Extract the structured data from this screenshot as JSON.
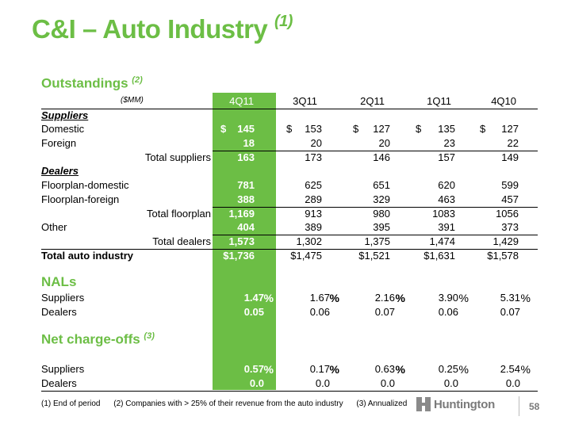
{
  "title": "C&I – Auto Industry",
  "title_note": "(1)",
  "outstandings": {
    "heading": "Outstandings",
    "heading_note": "(2)",
    "units": "($MM)",
    "columns": [
      "4Q11",
      "3Q11",
      "2Q11",
      "1Q11",
      "4Q10"
    ],
    "suppliers_label": "Suppliers",
    "domestic": {
      "label": "Domestic",
      "values": [
        "145",
        "153",
        "127",
        "135",
        "127"
      ],
      "currency": "$"
    },
    "foreign": {
      "label": "Foreign",
      "values": [
        "18",
        "20",
        "20",
        "23",
        "22"
      ]
    },
    "total_suppliers": {
      "label": "Total  suppliers",
      "values": [
        "163",
        "173",
        "146",
        "157",
        "149"
      ]
    },
    "dealers_label": "Dealers",
    "floorplan_domestic": {
      "label": "Floorplan-domestic",
      "values": [
        "781",
        "625",
        "651",
        "620",
        "599"
      ]
    },
    "floorplan_foreign": {
      "label": "Floorplan-foreign",
      "values": [
        "388",
        "289",
        "329",
        "463",
        "457"
      ]
    },
    "total_floorplan": {
      "label": "Total floorplan",
      "values": [
        "1,169",
        "913",
        "980",
        "1083",
        "1056"
      ]
    },
    "other": {
      "label": "Other",
      "values": [
        "404",
        "389",
        "395",
        "391",
        "373"
      ]
    },
    "total_dealers": {
      "label": "Total dealers",
      "values": [
        "1,573",
        "1,302",
        "1,375",
        "1,474",
        "1,429"
      ]
    },
    "total_auto": {
      "label": "Total auto industry",
      "values": [
        "$1,736",
        "$1,475",
        "$1,521",
        "$1,631",
        "$1,578"
      ]
    }
  },
  "nals": {
    "heading": "NALs",
    "suppliers": {
      "label": "Suppliers",
      "values": [
        "1.47",
        "1.67",
        "2.16",
        "3.90",
        "5.31"
      ]
    },
    "dealers": {
      "label": "Dealers",
      "values": [
        "0.05",
        "0.06",
        "0.07",
        "0.06",
        "0.07"
      ]
    }
  },
  "ncos": {
    "heading": "Net charge-offs",
    "heading_note": "(3)",
    "suppliers": {
      "label": "Suppliers",
      "values": [
        "0.57",
        "0.17",
        "0.63",
        "0.25",
        "2.54"
      ]
    },
    "dealers": {
      "label": "Dealers",
      "values": [
        "0.0",
        "0.0",
        "0.0",
        "0.0",
        "0.0"
      ]
    }
  },
  "percent_sign": "%",
  "footnotes": [
    "(1)   End of period",
    "(2)  Companies with > 25% of their revenue from the auto industry",
    "(3)  Annualized"
  ],
  "brand": "Huntington",
  "page_number": "58",
  "colors": {
    "accent": "#6cbe45",
    "logo_gray": "#7a7a7a"
  }
}
